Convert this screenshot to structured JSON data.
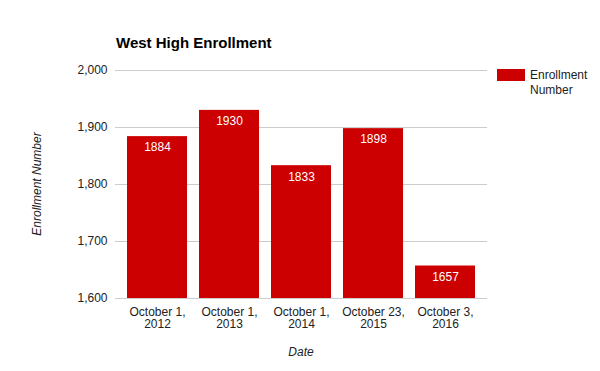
{
  "chart_data": {
    "type": "bar",
    "title": "West High Enrollment",
    "x_label": "Date",
    "y_label": "Enrollment Number",
    "categories": [
      "October 1, 2012",
      "October 1, 2013",
      "October 1, 2014",
      "October 23, 2015",
      "October 3, 2016"
    ],
    "series": [
      {
        "name": "Enrollment Number",
        "color": "#cc0000",
        "values": [
          1884,
          1930,
          1833,
          1898,
          1657
        ]
      }
    ],
    "ylim": [
      1600,
      2000
    ],
    "yticks": [
      1600,
      1700,
      1800,
      1900,
      2000
    ],
    "grid": true,
    "legend": "right",
    "data_labels": true
  }
}
